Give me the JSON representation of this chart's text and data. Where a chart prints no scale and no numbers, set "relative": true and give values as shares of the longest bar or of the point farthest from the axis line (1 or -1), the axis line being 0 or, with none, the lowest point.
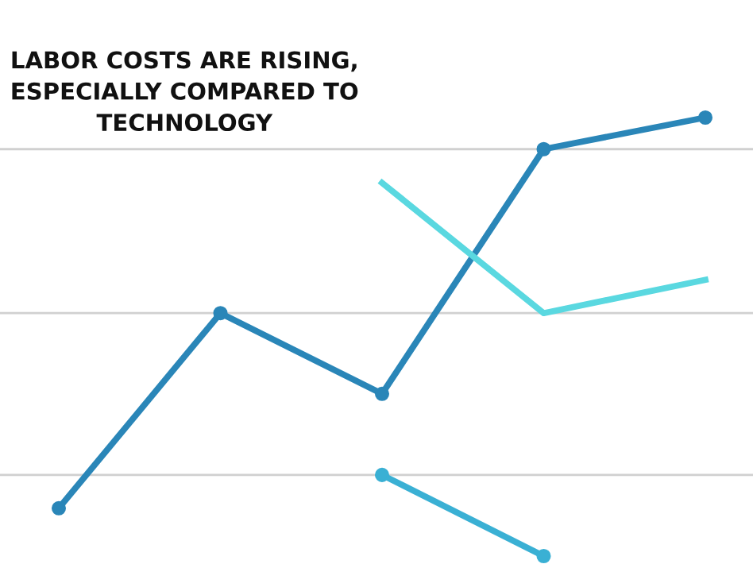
{
  "chart_data": {
    "type": "line",
    "title": "LABOR COSTS ARE RISING,\nESPECIALLY COMPARED TO\nTECHNOLOGY",
    "relative": true,
    "legend": false,
    "line_style": "solid",
    "categories": [
      null,
      null,
      null,
      null,
      null
    ],
    "ref_lines": [
      {
        "axis": "y",
        "value": 0.928,
        "color": "#d0d0d0"
      },
      {
        "axis": "y",
        "value": 0.554,
        "color": "#d0d0d0"
      },
      {
        "axis": "y",
        "value": 0.185,
        "color": "#d0d0d0"
      }
    ],
    "series": [
      {
        "color": "#2a86b8",
        "marker": "circle",
        "values": [
          0.109,
          0.554,
          0.37,
          0.928,
          1
        ]
      },
      {
        "color": "#5ad8e0",
        "marker": "none",
        "values": [
          null,
          null,
          0.851,
          0.554,
          0.63
        ]
      },
      {
        "color": "#3ab0d4",
        "marker": "circle",
        "values": [
          null,
          null,
          0.185,
          0,
          null
        ]
      }
    ]
  }
}
